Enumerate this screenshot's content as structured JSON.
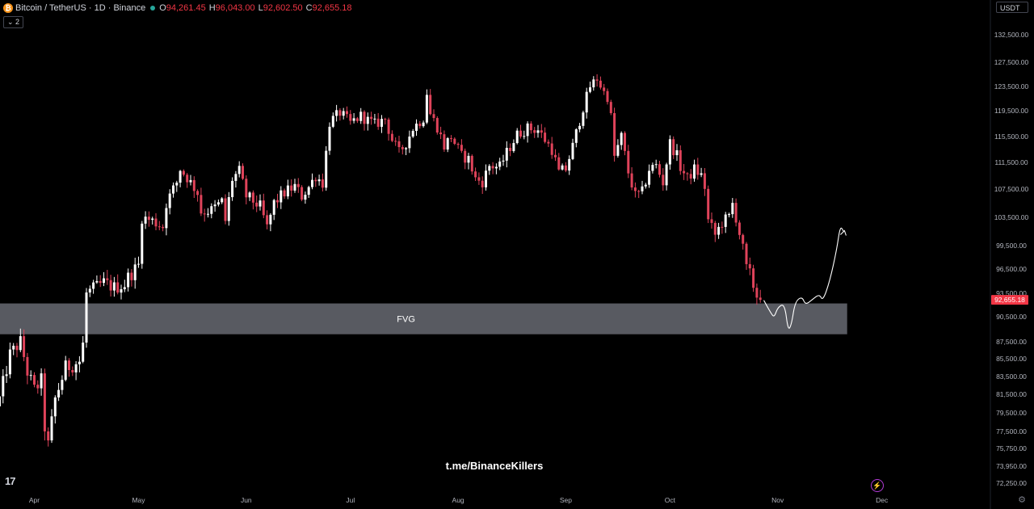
{
  "header": {
    "symbol": "Bitcoin / TetherUS · 1D · Binance",
    "open_label": "O",
    "open": "94,261.45",
    "high_label": "H",
    "high": "96,043.00",
    "low_label": "L",
    "low": "92,602.50",
    "close_label": "C",
    "close": "92,655.18",
    "indicator_badge": "⌄ 2"
  },
  "currency_button": "USDT",
  "watermark": "t.me/BinanceKillers",
  "colors": {
    "up": "#ffffff",
    "down": "#e0435a",
    "zone": "#5d5f66",
    "background": "#000000",
    "price_label": "#f23645"
  },
  "icons": {
    "tradingview": "tv-logo-icon",
    "flash": "flash-icon",
    "settings": "gear-icon"
  },
  "chart_data": {
    "type": "candlestick",
    "price_axis_ticks": [
      132500,
      127500,
      123500,
      119500,
      115500,
      111500,
      107500,
      103500,
      99500,
      96500,
      93500,
      90500,
      87500,
      85500,
      83500,
      81500,
      79500,
      77500,
      75750,
      73950,
      72250
    ],
    "price_axis_labels": [
      "132,500.00",
      "127,500.00",
      "123,500.00",
      "119,500.00",
      "115,500.00",
      "111,500.00",
      "107,500.00",
      "103,500.00",
      "99,500.00",
      "96,500.00",
      "93,500.00",
      "90,500.00",
      "87,500.00",
      "85,500.00",
      "83,500.00",
      "81,500.00",
      "79,500.00",
      "77,500.00",
      "75,750.00",
      "73,950.00",
      "72,250.00"
    ],
    "time_axis_labels": [
      "Apr",
      "May",
      "Jun",
      "Jul",
      "Aug",
      "Sep",
      "Oct",
      "Nov",
      "Dec"
    ],
    "time_axis_days": [
      10,
      40,
      71,
      101,
      132,
      163,
      193,
      224,
      254
    ],
    "current_price": 92655.18,
    "current_price_label": "92,655.18",
    "zone": {
      "label": "FVG",
      "top": 92200,
      "bottom": 88400,
      "from_day": -10,
      "to_day": 244
    },
    "projection": [
      [
        220,
        92600
      ],
      [
        222,
        91000
      ],
      [
        223,
        90400
      ],
      [
        224,
        91700
      ],
      [
        226,
        92200
      ],
      [
        227,
        88800
      ],
      [
        228,
        89600
      ],
      [
        229,
        92400
      ],
      [
        231,
        93100
      ],
      [
        232,
        92000
      ],
      [
        234,
        92700
      ],
      [
        236,
        93400
      ],
      [
        237,
        92500
      ],
      [
        239,
        95000
      ],
      [
        241,
        99000
      ],
      [
        242,
        102300
      ],
      [
        243,
        101500
      ]
    ],
    "anchors": [
      [
        0,
        81000
      ],
      [
        3,
        86000
      ],
      [
        6,
        87500
      ],
      [
        8,
        84000
      ],
      [
        10,
        82000
      ],
      [
        12,
        83000
      ],
      [
        13,
        78000
      ],
      [
        14,
        76000
      ],
      [
        16,
        81000
      ],
      [
        19,
        84500
      ],
      [
        23,
        85200
      ],
      [
        24,
        87200
      ],
      [
        25,
        93500
      ],
      [
        30,
        94800
      ],
      [
        33,
        94200
      ],
      [
        36,
        94600
      ],
      [
        37,
        95500
      ],
      [
        40,
        97000
      ],
      [
        41,
        103500
      ],
      [
        44,
        103000
      ],
      [
        47,
        102200
      ],
      [
        48,
        105500
      ],
      [
        51,
        108500
      ],
      [
        52,
        110500
      ],
      [
        54,
        109200
      ],
      [
        57,
        107000
      ],
      [
        58,
        104300
      ],
      [
        61,
        104500
      ],
      [
        64,
        105700
      ],
      [
        65,
        103000
      ],
      [
        67,
        109000
      ],
      [
        69,
        110200
      ],
      [
        71,
        106500
      ],
      [
        73,
        105800
      ],
      [
        75,
        105000
      ],
      [
        77,
        102000
      ],
      [
        79,
        105500
      ],
      [
        82,
        107000
      ],
      [
        85,
        107900
      ],
      [
        87,
        106500
      ],
      [
        89,
        107800
      ],
      [
        91,
        109500
      ],
      [
        93,
        108400
      ],
      [
        95,
        117700
      ],
      [
        98,
        119200
      ],
      [
        101,
        117600
      ],
      [
        104,
        118700
      ],
      [
        106,
        118000
      ],
      [
        108,
        117400
      ],
      [
        111,
        118200
      ],
      [
        113,
        115000
      ],
      [
        115,
        113000
      ],
      [
        117,
        114500
      ],
      [
        119,
        116800
      ],
      [
        122,
        118400
      ],
      [
        123,
        122500
      ],
      [
        124,
        119000
      ],
      [
        126,
        117000
      ],
      [
        128,
        114000
      ],
      [
        130,
        115500
      ],
      [
        133,
        112500
      ],
      [
        135,
        112000
      ],
      [
        137,
        109000
      ],
      [
        139,
        108600
      ],
      [
        141,
        111000
      ],
      [
        144,
        110800
      ],
      [
        146,
        113000
      ],
      [
        149,
        115800
      ],
      [
        152,
        116800
      ],
      [
        155,
        116500
      ],
      [
        157,
        115000
      ],
      [
        159,
        113500
      ],
      [
        161,
        110000
      ],
      [
        163,
        110500
      ],
      [
        165,
        114000
      ],
      [
        168,
        120000
      ],
      [
        170,
        123500
      ],
      [
        172,
        124800
      ],
      [
        174,
        122500
      ],
      [
        175,
        121800
      ],
      [
        176,
        118500
      ],
      [
        177,
        112400
      ],
      [
        179,
        115500
      ],
      [
        181,
        110000
      ],
      [
        183,
        106500
      ],
      [
        185,
        107000
      ],
      [
        187,
        110500
      ],
      [
        189,
        111000
      ],
      [
        191,
        108500
      ],
      [
        193,
        114500
      ],
      [
        195,
        112500
      ],
      [
        196,
        110800
      ],
      [
        198,
        109000
      ],
      [
        200,
        110500
      ],
      [
        202,
        109500
      ],
      [
        203,
        107800
      ],
      [
        204,
        103000
      ],
      [
        206,
        101000
      ],
      [
        208,
        102800
      ],
      [
        210,
        103500
      ],
      [
        211,
        105400
      ],
      [
        212,
        103500
      ],
      [
        214,
        99000
      ],
      [
        215,
        96500
      ],
      [
        216,
        95800
      ],
      [
        217,
        94500
      ],
      [
        218,
        93200
      ],
      [
        219,
        92655
      ]
    ]
  }
}
